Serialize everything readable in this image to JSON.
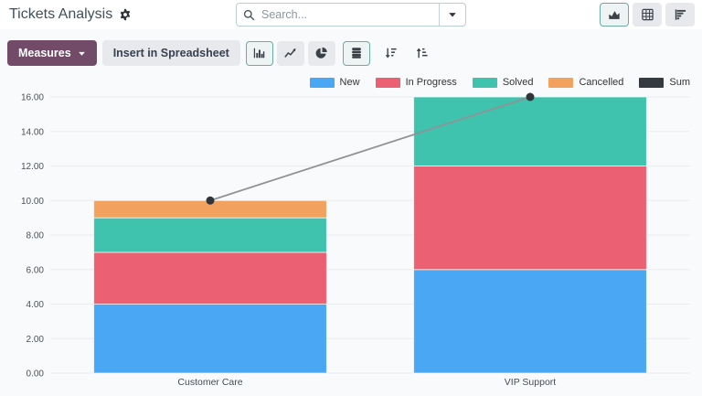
{
  "header": {
    "title": "Tickets Analysis",
    "search_placeholder": "Search...",
    "view_switcher": [
      {
        "name": "graph",
        "icon": "area-chart-icon",
        "active": true
      },
      {
        "name": "pivot",
        "icon": "pivot-table-icon",
        "active": false
      },
      {
        "name": "cohort",
        "icon": "cohort-icon",
        "active": false
      }
    ]
  },
  "toolbar": {
    "measures_label": "Measures",
    "insert_label": "Insert in Spreadsheet",
    "chart_type_buttons": [
      {
        "name": "bar-chart",
        "active": true
      },
      {
        "name": "line-chart",
        "active": false
      },
      {
        "name": "pie-chart",
        "active": false
      }
    ],
    "stacked_button": {
      "name": "stacked",
      "active": true
    },
    "sort_buttons": [
      {
        "name": "sort-descending",
        "active": false
      },
      {
        "name": "sort-ascending",
        "active": false
      }
    ]
  },
  "colors": {
    "measures_bg": "#714B67",
    "active_border": "#6aaba7",
    "button_bg": "#e7e9ed",
    "grid": "#e9ebef",
    "tick_text": "#4b5259",
    "sum_line": "#8f9396",
    "sum_point": "#2f353b"
  },
  "chart_data": {
    "type": "bar",
    "stacked": true,
    "title": "",
    "xlabel": "",
    "ylabel": "",
    "categories": [
      "Customer Care",
      "VIP Support"
    ],
    "series": [
      {
        "name": "New",
        "type": "bar",
        "color": "#4aa7f4",
        "values": [
          4,
          6
        ]
      },
      {
        "name": "In Progress",
        "type": "bar",
        "color": "#ec6073",
        "values": [
          3,
          6
        ]
      },
      {
        "name": "Solved",
        "type": "bar",
        "color": "#3fc2ae",
        "values": [
          2,
          4
        ]
      },
      {
        "name": "Cancelled",
        "type": "bar",
        "color": "#f2a25e",
        "values": [
          1,
          0
        ]
      },
      {
        "name": "Sum",
        "type": "line",
        "color": "#343a40",
        "values": [
          10,
          16
        ]
      }
    ],
    "ylim": [
      0,
      16
    ],
    "ytick_step": 2,
    "ytick_format": "2dp",
    "grid": true,
    "legend_position": "top-right"
  }
}
